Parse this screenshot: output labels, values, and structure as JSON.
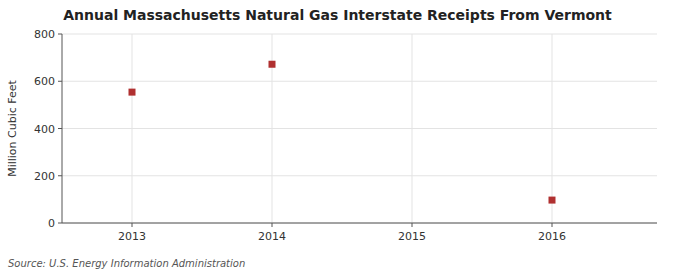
{
  "chart_data": {
    "type": "scatter",
    "title": "Annual Massachusetts Natural Gas Interstate Receipts From Vermont",
    "ylabel": "Million Cubic Feet",
    "source": "Source: U.S. Energy Information Administration",
    "x": [
      2013,
      2014,
      2016
    ],
    "values": [
      554,
      672,
      97
    ],
    "color": "#b03030",
    "marker": "square",
    "xlim": [
      2012.5,
      2016.75
    ],
    "ylim": [
      0,
      800
    ],
    "xticks": [
      2013,
      2014,
      2015,
      2016
    ],
    "yticks": [
      0,
      200,
      400,
      600,
      800
    ],
    "grid": true
  }
}
